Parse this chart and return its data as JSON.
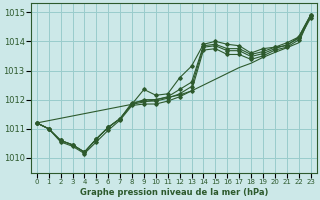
{
  "title": "Graphe pression niveau de la mer (hPa)",
  "bg_color": "#cce8e8",
  "grid_color": "#99cccc",
  "line_color": "#2d5a2d",
  "xlim": [
    -0.5,
    23.5
  ],
  "ylim": [
    1009.5,
    1015.3
  ],
  "yticks": [
    1010,
    1011,
    1012,
    1013,
    1014,
    1015
  ],
  "xticks": [
    0,
    1,
    2,
    3,
    4,
    5,
    6,
    7,
    8,
    9,
    10,
    11,
    12,
    13,
    14,
    15,
    16,
    17,
    18,
    19,
    20,
    21,
    22,
    23
  ],
  "series": [
    [
      1011.2,
      1011.0,
      1010.6,
      1010.45,
      1010.2,
      1010.65,
      1011.05,
      1011.35,
      1011.85,
      1012.35,
      1012.15,
      1012.2,
      1012.75,
      1013.15,
      1013.9,
      1014.0,
      1013.9,
      1013.85,
      1013.6,
      1013.75,
      1013.8,
      1013.85,
      1014.15,
      1014.9
    ],
    [
      1011.2,
      1011.0,
      1010.6,
      1010.45,
      1010.2,
      1010.65,
      1011.05,
      1011.35,
      1011.85,
      1012.0,
      1012.0,
      1012.1,
      1012.35,
      1012.6,
      1013.85,
      1013.9,
      1013.75,
      1013.75,
      1013.55,
      1013.65,
      1013.8,
      1013.95,
      1014.15,
      1014.9
    ],
    [
      1011.2,
      1011.0,
      1010.6,
      1010.45,
      1010.2,
      1010.65,
      1011.05,
      1011.35,
      1011.9,
      1011.95,
      1011.95,
      1012.05,
      1012.2,
      1012.45,
      1013.8,
      1013.85,
      1013.68,
      1013.68,
      1013.48,
      1013.58,
      1013.75,
      1013.88,
      1014.1,
      1014.88
    ],
    [
      1011.2,
      1011.0,
      1010.55,
      1010.4,
      1010.15,
      1010.55,
      1010.95,
      1011.3,
      1011.8,
      1011.85,
      1011.85,
      1011.95,
      1012.1,
      1012.3,
      1013.7,
      1013.75,
      1013.55,
      1013.55,
      1013.38,
      1013.5,
      1013.7,
      1013.8,
      1014.05,
      1014.8
    ]
  ],
  "series_linear": [
    1011.2,
    1011.28,
    1011.36,
    1011.44,
    1011.52,
    1011.6,
    1011.68,
    1011.76,
    1011.84,
    1011.92,
    1012.0,
    1012.08,
    1012.16,
    1012.3,
    1012.5,
    1012.7,
    1012.9,
    1013.1,
    1013.25,
    1013.45,
    1013.62,
    1013.78,
    1013.95,
    1014.9
  ]
}
